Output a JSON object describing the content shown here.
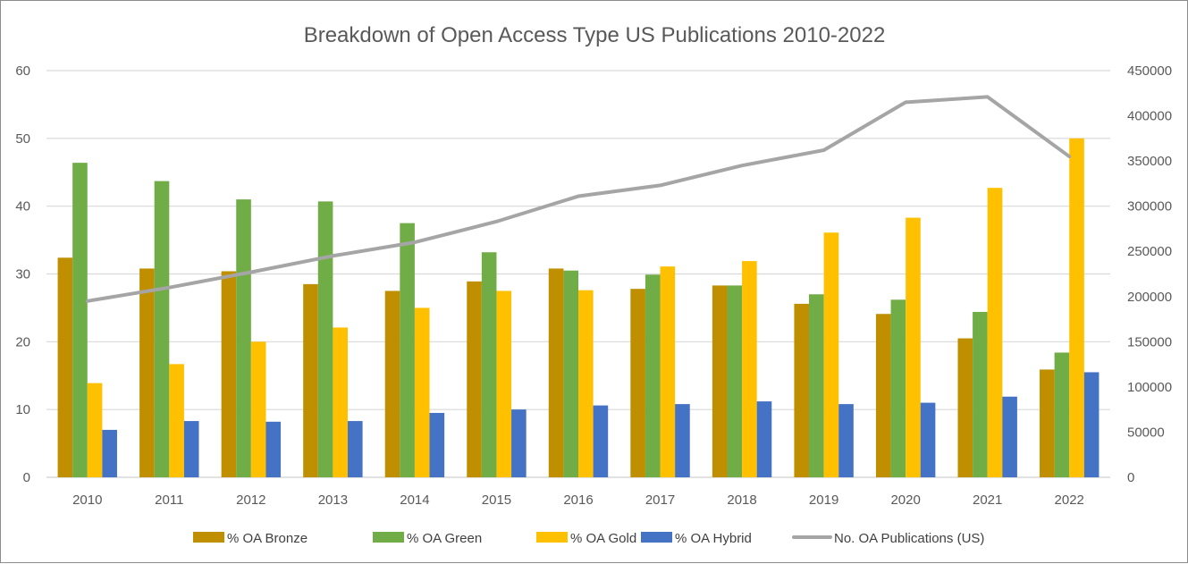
{
  "chart_data": {
    "type": "bar",
    "title": "Breakdown of Open Access Type US Publications 2010-2022",
    "xlabel": "",
    "ylabel": "",
    "y2label": "",
    "categories": [
      "2010",
      "2011",
      "2012",
      "2013",
      "2014",
      "2015",
      "2016",
      "2017",
      "2018",
      "2019",
      "2020",
      "2021",
      "2022"
    ],
    "ylim": [
      0,
      60
    ],
    "yticks": [
      0,
      10,
      20,
      30,
      40,
      50,
      60
    ],
    "y2lim": [
      0,
      450000
    ],
    "y2ticks": [
      0,
      50000,
      100000,
      150000,
      200000,
      250000,
      300000,
      350000,
      400000,
      450000
    ],
    "grid": true,
    "legend_position": "bottom",
    "series": [
      {
        "name": "% OA Bronze",
        "type": "bar",
        "axis": "left",
        "color": "#BF8F00",
        "values": [
          32.4,
          30.8,
          30.4,
          28.5,
          27.5,
          28.9,
          30.8,
          27.8,
          28.3,
          25.6,
          24.1,
          20.5,
          15.9
        ]
      },
      {
        "name": "% OA Green",
        "type": "bar",
        "axis": "left",
        "color": "#70AD47",
        "values": [
          46.4,
          43.7,
          41.0,
          40.7,
          37.5,
          33.2,
          30.5,
          29.9,
          28.3,
          27.0,
          26.2,
          24.4,
          18.4
        ]
      },
      {
        "name": "% OA Gold",
        "type": "bar",
        "axis": "left",
        "color": "#FFC000",
        "values": [
          13.9,
          16.7,
          20.0,
          22.1,
          25.0,
          27.5,
          27.6,
          31.1,
          31.9,
          36.1,
          38.3,
          42.7,
          50.0
        ]
      },
      {
        "name": "% OA Hybrid",
        "type": "bar",
        "axis": "left",
        "color": "#4472C4",
        "values": [
          7.0,
          8.3,
          8.2,
          8.3,
          9.5,
          10.0,
          10.6,
          10.8,
          11.2,
          10.8,
          11.0,
          11.9,
          15.5
        ]
      },
      {
        "name": "No. OA Publications (US)",
        "type": "line",
        "axis": "right",
        "color": "#A5A5A5",
        "values": [
          195000,
          210000,
          227000,
          245000,
          260000,
          283000,
          311000,
          323000,
          345000,
          362000,
          415000,
          421000,
          355000
        ]
      }
    ]
  }
}
